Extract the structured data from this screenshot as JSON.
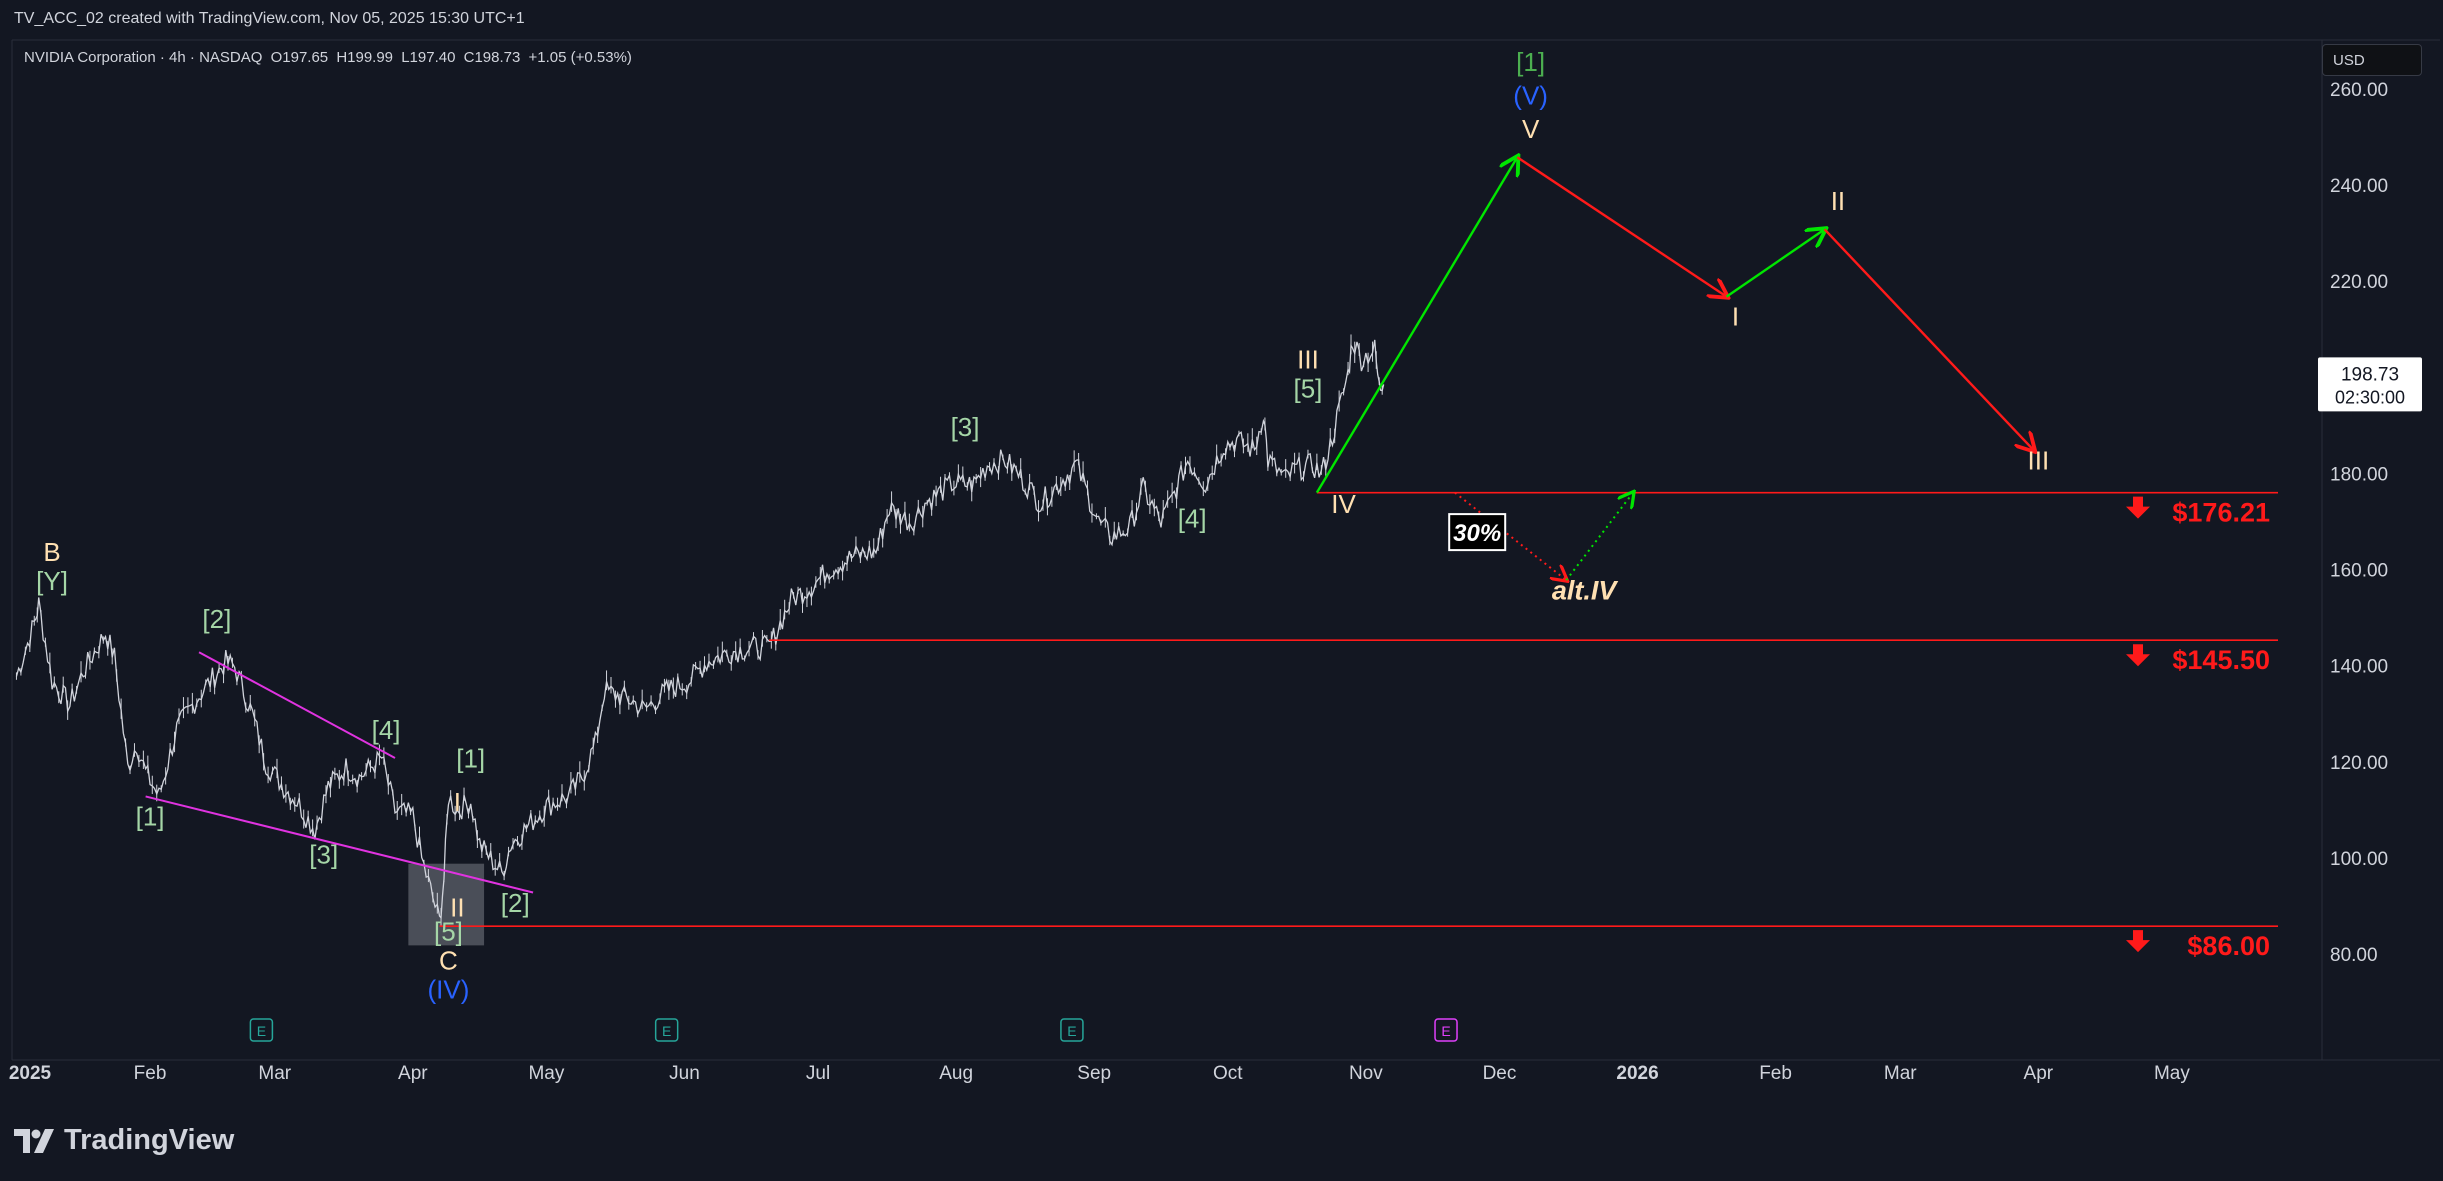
{
  "header": {
    "caption": "TV_ACC_02 created with TradingView.com, Nov 05, 2025 15:30 UTC+1",
    "symbol": "NVIDIA Corporation · 4h · NASDAQ",
    "open": "O197.65",
    "high": "H199.99",
    "low": "L197.40",
    "close": "C198.73",
    "change": "+1.05 (+0.53%)",
    "currency": "USD"
  },
  "footer": {
    "logo_text": "TradingView",
    "logo_icon": "tradingview-logo-icon"
  },
  "chart_data": {
    "type": "line",
    "title": "NVIDIA Corporation · 4h · NASDAQ",
    "ylim": [
      60,
      265
    ],
    "y_ticks": [
      "260.00",
      "240.00",
      "220.00",
      "200.00",
      "180.00",
      "160.00",
      "140.00",
      "120.00",
      "100.00",
      "80.00"
    ],
    "x_ticks": [
      "2025",
      "Feb",
      "Mar",
      "Apr",
      "May",
      "Jun",
      "Jul",
      "Aug",
      "Sep",
      "Oct",
      "Nov",
      "Dec",
      "2026",
      "Feb",
      "Mar",
      "Apr",
      "May"
    ],
    "last_price": {
      "value": "198.73",
      "countdown": "02:30:00"
    },
    "colors": {
      "up": "#00e600",
      "down": "#ff1a1a",
      "level": "#ff1a1a",
      "wedge": "#e033e0",
      "green_label": "#a5d6a7",
      "orange_label": "#ffe0b2",
      "blue_label": "#2962ff",
      "bright_green": "#4caf50",
      "price": "#ffffff"
    },
    "price_series": [
      {
        "x": "2025-01-02",
        "y": 138
      },
      {
        "x": "2025-01-06",
        "y": 149
      },
      {
        "x": "2025-01-07",
        "y": 153
      },
      {
        "x": "2025-01-10",
        "y": 137
      },
      {
        "x": "2025-01-14",
        "y": 132
      },
      {
        "x": "2025-01-17",
        "y": 139
      },
      {
        "x": "2025-01-22",
        "y": 147
      },
      {
        "x": "2025-01-24",
        "y": 142
      },
      {
        "x": "2025-01-27",
        "y": 119
      },
      {
        "x": "2025-01-29",
        "y": 124
      },
      {
        "x": "2025-01-31",
        "y": 118
      },
      {
        "x": "2025-02-03",
        "y": 113
      },
      {
        "x": "2025-02-07",
        "y": 127
      },
      {
        "x": "2025-02-12",
        "y": 134
      },
      {
        "x": "2025-02-18",
        "y": 141
      },
      {
        "x": "2025-02-20",
        "y": 140
      },
      {
        "x": "2025-02-24",
        "y": 130
      },
      {
        "x": "2025-02-27",
        "y": 120
      },
      {
        "x": "2025-03-03",
        "y": 115
      },
      {
        "x": "2025-03-06",
        "y": 112
      },
      {
        "x": "2025-03-10",
        "y": 106
      },
      {
        "x": "2025-03-13",
        "y": 115
      },
      {
        "x": "2025-03-17",
        "y": 119
      },
      {
        "x": "2025-03-20",
        "y": 117
      },
      {
        "x": "2025-03-25",
        "y": 121
      },
      {
        "x": "2025-03-28",
        "y": 110
      },
      {
        "x": "2025-04-01",
        "y": 109
      },
      {
        "x": "2025-04-03",
        "y": 100
      },
      {
        "x": "2025-04-07",
        "y": 87
      },
      {
        "x": "2025-04-08",
        "y": 96
      },
      {
        "x": "2025-04-09",
        "y": 113
      },
      {
        "x": "2025-04-11",
        "y": 110
      },
      {
        "x": "2025-04-14",
        "y": 112
      },
      {
        "x": "2025-04-16",
        "y": 103
      },
      {
        "x": "2025-04-21",
        "y": 97
      },
      {
        "x": "2025-04-23",
        "y": 103
      },
      {
        "x": "2025-04-28",
        "y": 108
      },
      {
        "x": "2025-05-01",
        "y": 111
      },
      {
        "x": "2025-05-06",
        "y": 113
      },
      {
        "x": "2025-05-09",
        "y": 117
      },
      {
        "x": "2025-05-12",
        "y": 124
      },
      {
        "x": "2025-05-14",
        "y": 135
      },
      {
        "x": "2025-05-20",
        "y": 133
      },
      {
        "x": "2025-05-23",
        "y": 131
      },
      {
        "x": "2025-05-28",
        "y": 135
      },
      {
        "x": "2025-06-02",
        "y": 137
      },
      {
        "x": "2025-06-06",
        "y": 141
      },
      {
        "x": "2025-06-11",
        "y": 143
      },
      {
        "x": "2025-06-16",
        "y": 144
      },
      {
        "x": "2025-06-20",
        "y": 144
      },
      {
        "x": "2025-06-25",
        "y": 154
      },
      {
        "x": "2025-06-30",
        "y": 157
      },
      {
        "x": "2025-07-03",
        "y": 160
      },
      {
        "x": "2025-07-09",
        "y": 163
      },
      {
        "x": "2025-07-14",
        "y": 164
      },
      {
        "x": "2025-07-17",
        "y": 173
      },
      {
        "x": "2025-07-22",
        "y": 170
      },
      {
        "x": "2025-07-25",
        "y": 174
      },
      {
        "x": "2025-07-31",
        "y": 178
      },
      {
        "x": "2025-08-05",
        "y": 178
      },
      {
        "x": "2025-08-08",
        "y": 182
      },
      {
        "x": "2025-08-12",
        "y": 183
      },
      {
        "x": "2025-08-15",
        "y": 180
      },
      {
        "x": "2025-08-20",
        "y": 174
      },
      {
        "x": "2025-08-25",
        "y": 179
      },
      {
        "x": "2025-08-28",
        "y": 182
      },
      {
        "x": "2025-09-02",
        "y": 170
      },
      {
        "x": "2025-09-05",
        "y": 167
      },
      {
        "x": "2025-09-09",
        "y": 169
      },
      {
        "x": "2025-09-12",
        "y": 177
      },
      {
        "x": "2025-09-16",
        "y": 170
      },
      {
        "x": "2025-09-19",
        "y": 176
      },
      {
        "x": "2025-09-22",
        "y": 183
      },
      {
        "x": "2025-09-26",
        "y": 178
      },
      {
        "x": "2025-09-30",
        "y": 186
      },
      {
        "x": "2025-10-03",
        "y": 187
      },
      {
        "x": "2025-10-07",
        "y": 185
      },
      {
        "x": "2025-10-09",
        "y": 193
      },
      {
        "x": "2025-10-10",
        "y": 183
      },
      {
        "x": "2025-10-14",
        "y": 179
      },
      {
        "x": "2025-10-16",
        "y": 181
      },
      {
        "x": "2025-10-20",
        "y": 182
      },
      {
        "x": "2025-10-22",
        "y": 180
      },
      {
        "x": "2025-10-24",
        "y": 186
      },
      {
        "x": "2025-10-28",
        "y": 201
      },
      {
        "x": "2025-10-29",
        "y": 208
      },
      {
        "x": "2025-10-31",
        "y": 204
      },
      {
        "x": "2025-11-03",
        "y": 206
      },
      {
        "x": "2025-11-04",
        "y": 198
      },
      {
        "x": "2025-11-05",
        "y": 198.73
      }
    ],
    "levels": [
      {
        "value": 176.21,
        "label": "$176.21",
        "start": "2025-10-21"
      },
      {
        "value": 145.5,
        "label": "$145.50",
        "start": "2025-06-20"
      },
      {
        "value": 86.0,
        "label": "$86.00",
        "start": "2025-04-07"
      }
    ],
    "projection_path": [
      {
        "x": "2025-10-21",
        "y": 176.21,
        "color": "up"
      },
      {
        "x": "2025-12-05",
        "y": 246,
        "color": "down"
      },
      {
        "x": "2026-01-21",
        "y": 217,
        "color": "up"
      },
      {
        "x": "2026-02-12",
        "y": 231,
        "color": "down"
      },
      {
        "x": "2026-03-31",
        "y": 185
      }
    ],
    "alt_path": [
      {
        "x": "2025-11-21",
        "y": 176.21
      },
      {
        "x": "2025-12-16",
        "y": 158
      },
      {
        "x": "2025-12-31",
        "y": 176.21
      }
    ],
    "wedge_lines": [
      {
        "from": {
          "x": "2025-02-12",
          "y": 143
        },
        "to": {
          "x": "2025-03-28",
          "y": 121
        }
      },
      {
        "from": {
          "x": "2025-01-31",
          "y": 113
        },
        "to": {
          "x": "2025-04-28",
          "y": 93
        }
      }
    ],
    "highlight_box": {
      "from": {
        "x": "2025-03-31",
        "y": 82
      },
      "to": {
        "x": "2025-04-17",
        "y": 99
      }
    },
    "annotations": [
      {
        "text": "B",
        "x": "2025-01-10",
        "y": 162,
        "color": "orange_label"
      },
      {
        "text": "[Y]",
        "x": "2025-01-10",
        "y": 156,
        "color": "green_label"
      },
      {
        "text": "[2]",
        "x": "2025-02-16",
        "y": 148,
        "color": "green_label"
      },
      {
        "text": "[1]",
        "x": "2025-02-01",
        "y": 107,
        "color": "green_label"
      },
      {
        "text": "[3]",
        "x": "2025-03-12",
        "y": 99,
        "color": "green_label"
      },
      {
        "text": "[4]",
        "x": "2025-03-26",
        "y": 125,
        "color": "green_label"
      },
      {
        "text": "[1]",
        "x": "2025-04-14",
        "y": 119,
        "color": "green_label"
      },
      {
        "text": "I",
        "x": "2025-04-11",
        "y": 110,
        "color": "orange_label"
      },
      {
        "text": "II",
        "x": "2025-04-11",
        "y": 88,
        "color": "orange_label"
      },
      {
        "text": "[2]",
        "x": "2025-04-24",
        "y": 89,
        "color": "green_label"
      },
      {
        "text": "[5]",
        "x": "2025-04-09",
        "y": 83,
        "color": "green_label"
      },
      {
        "text": "C",
        "x": "2025-04-09",
        "y": 77,
        "color": "orange_label"
      },
      {
        "text": "(IV)",
        "x": "2025-04-09",
        "y": 71,
        "color": "blue_label"
      },
      {
        "text": "[3]",
        "x": "2025-08-03",
        "y": 188,
        "color": "green_label"
      },
      {
        "text": "[4]",
        "x": "2025-09-23",
        "y": 169,
        "color": "green_label"
      },
      {
        "text": "III",
        "x": "2025-10-19",
        "y": 202,
        "color": "orange_label"
      },
      {
        "text": "[5]",
        "x": "2025-10-19",
        "y": 196,
        "color": "green_label"
      },
      {
        "text": "IV",
        "x": "2025-10-27",
        "y": 172,
        "color": "orange_label"
      },
      {
        "text": "[1]",
        "x": "2025-12-08",
        "y": 264,
        "color": "bright_green"
      },
      {
        "text": "(V)",
        "x": "2025-12-08",
        "y": 257,
        "color": "blue_label"
      },
      {
        "text": "V",
        "x": "2025-12-08",
        "y": 250,
        "color": "orange_label"
      },
      {
        "text": "I",
        "x": "2026-01-23",
        "y": 211,
        "color": "orange_label"
      },
      {
        "text": "II",
        "x": "2026-02-15",
        "y": 235,
        "color": "orange_label"
      },
      {
        "text": "III",
        "x": "2026-04-01",
        "y": 181,
        "color": "orange_label"
      },
      {
        "text": "alt.IV",
        "x": "2025-12-20",
        "y": 154,
        "color": "orange_label",
        "italic": true
      }
    ],
    "probability_box": {
      "text": "30%",
      "x": "2025-11-26",
      "y": 168
    },
    "earnings_markers": [
      {
        "x": "2025-02-26",
        "label": "E",
        "color": "#26a69a"
      },
      {
        "x": "2025-05-28",
        "label": "E",
        "color": "#26a69a"
      },
      {
        "x": "2025-08-27",
        "label": "E",
        "color": "#26a69a"
      },
      {
        "x": "2025-11-19",
        "label": "E",
        "color": "#e040fb"
      }
    ]
  }
}
